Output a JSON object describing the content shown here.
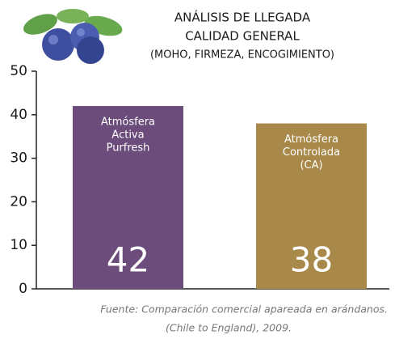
{
  "chart_data": {
    "type": "bar",
    "title": [
      "ANÁLISIS DE LLEGADA",
      "CALIDAD GENERAL"
    ],
    "subtitle": "(MOHO, FIRMEZA, ENCOGIMIENTO)",
    "categories": [
      [
        "Atmósfera",
        "Activa",
        "Purfresh"
      ],
      [
        "Atmósfera",
        "Controlada",
        "(CA)"
      ]
    ],
    "values": [
      42,
      38
    ],
    "colors": [
      "#6b4c7a",
      "#a8894a"
    ],
    "ylim": [
      0,
      50
    ],
    "yticks": [
      0,
      10,
      20,
      30,
      40,
      50
    ],
    "source": [
      "Fuente: Comparación comercial apareada en arándanos.",
      "(Chile to England), 2009."
    ]
  }
}
